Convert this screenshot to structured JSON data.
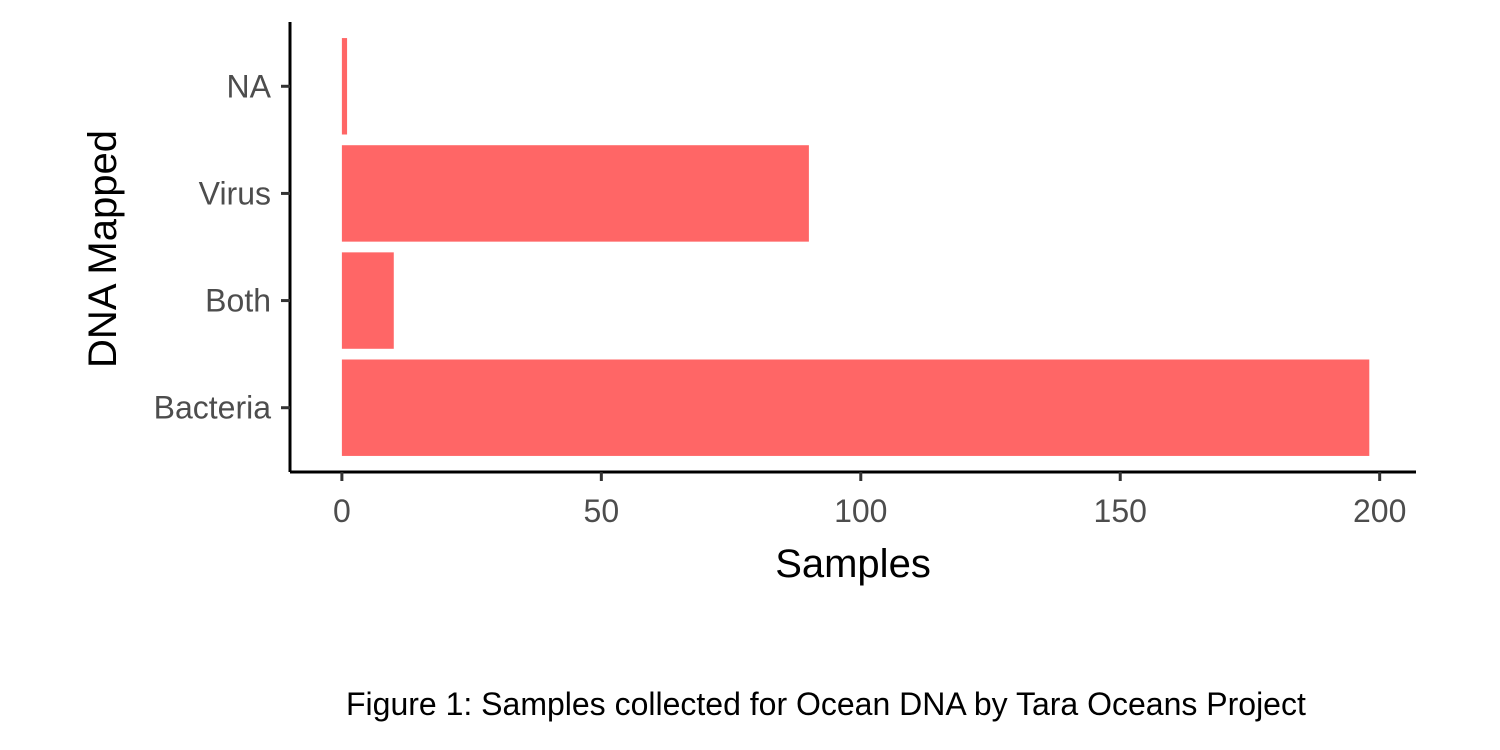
{
  "chart_data": {
    "type": "bar",
    "orientation": "horizontal",
    "categories": [
      "Bacteria",
      "Both",
      "Virus",
      "NA"
    ],
    "values": [
      198,
      10,
      90,
      1
    ],
    "xlabel": "Samples",
    "ylabel": "DNA Mapped",
    "xlim": [
      -10,
      207
    ],
    "xticks": [
      0,
      50,
      100,
      150,
      200
    ],
    "bar_color": "#ff6666",
    "grid": false,
    "legend": "none"
  },
  "caption": "Figure 1: Samples collected for Ocean DNA by Tara Oceans Project"
}
